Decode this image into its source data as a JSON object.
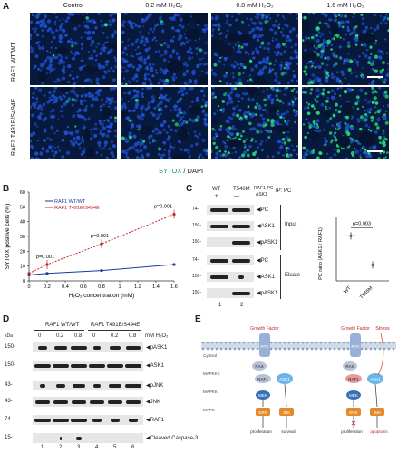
{
  "panelA": {
    "label": "A",
    "columns": [
      "Control",
      "0.2 mM H₂O₂",
      "0.8 mM H₂O₂",
      "1.6 mM H₂O₂"
    ],
    "rows": [
      "RAF1 WT/WT",
      "RAF1 T491E/S494E"
    ],
    "caption_green": "SYTOX",
    "caption_rest": " / DAPI"
  },
  "panelB": {
    "label": "B",
    "legend": [
      "RAF1 WT/WT",
      "RAF1 T491E/S494E"
    ],
    "pvals": [
      "p=0.001",
      "p=0.001",
      "p=0.001"
    ]
  },
  "chart_data": {
    "type": "line",
    "xlabel": "H₂O₂ concentration (mM)",
    "ylabel": "SYTOX positive cells (%)",
    "xlim": [
      0,
      1.6
    ],
    "ylim": [
      0,
      60
    ],
    "xticks": [
      "0",
      "0.2",
      "0.4",
      "0.6",
      "0.8",
      "1",
      "1.2",
      "1.4",
      "1.6"
    ],
    "yticks": [
      "0",
      "10",
      "20",
      "30",
      "40",
      "50",
      "60"
    ],
    "x": [
      0,
      0.2,
      0.8,
      1.6
    ],
    "series": [
      {
        "name": "RAF1 WT/WT",
        "values": [
          4,
          5,
          7,
          11
        ],
        "color": "#1a3a9c"
      },
      {
        "name": "RAF1 T491E/S494E",
        "values": [
          5,
          11,
          25,
          45
        ],
        "color": "#c0262b"
      }
    ]
  },
  "panelC": {
    "label": "C",
    "cols": [
      "WT",
      "T546M",
      "RAF1-PC",
      "ASK1"
    ],
    "kda_marks": [
      "74-",
      "150-",
      "150-",
      "74-",
      "150-",
      "150-"
    ],
    "markers": [
      "PC",
      "ASK1",
      "pASK1",
      "PC",
      "ASK1",
      "pASK1"
    ],
    "groups": [
      "Input",
      "Eluate"
    ],
    "ip_label": "IP: PC",
    "lanes": [
      "1",
      "2"
    ],
    "signs_top": [
      "+",
      "—"
    ],
    "bar_ylabel": "PC ratio (ASK1 / RAF1)",
    "bar_p": "p=0.003",
    "bar_cats": [
      "WT",
      "T546M"
    ],
    "bar_values": [
      0.85,
      0.3
    ]
  },
  "panelD": {
    "label": "D",
    "groups": [
      "RAF1 WT/WT",
      "RAF1 T491E/S494E"
    ],
    "conc": [
      "0",
      "0.2",
      "0.8",
      "0",
      "0.2",
      "0.8"
    ],
    "unit": "mM H₂O₂",
    "kda": [
      "150-",
      "150-",
      "43-",
      "43-",
      "74-",
      "15-"
    ],
    "markers": [
      "pASK1",
      "ASK1",
      "pJNK",
      "JNK",
      "RAF1",
      "Cleaved Caspase-3"
    ],
    "lanes": [
      "1",
      "2",
      "3",
      "4",
      "5",
      "6"
    ],
    "kda_head": "kDa"
  },
  "panelE": {
    "label": "E",
    "left": {
      "gf": "Growth Factor",
      "rtk": "RTK",
      "cyto": "Cytosol",
      "mapkkk": "MAPKKK",
      "mapkk": "MAPKK",
      "mapk": "MAPK",
      "ras": "RAS",
      "raf": "RAF1",
      "ask": "ASK1",
      "mek": "MEK",
      "erk": "ERK",
      "jnk": "JNK",
      "out1": "proliferation",
      "out2": "survival"
    },
    "right": {
      "gf": "Growth Factor",
      "stress": "Stress",
      "rtk": "RTK",
      "ras": "RAS",
      "raf": "RAF1",
      "ask": "ASK1",
      "mek": "MEK",
      "erk": "ERK",
      "jnk": "JNK",
      "out1": "proliferation",
      "out2": "apoptosis"
    }
  },
  "colors": {
    "dapi": "#1f4ecf",
    "sytox": "#26e07a",
    "wt": "#1a3a9c",
    "mut": "#c0262b",
    "cell": "#7a8fb0",
    "arrow": "#e34a2b"
  }
}
